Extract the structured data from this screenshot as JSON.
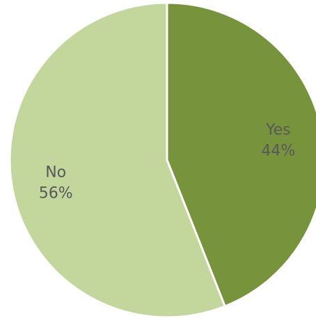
{
  "chart_data": {
    "type": "pie",
    "title": "",
    "slices": [
      {
        "label": "Yes",
        "value": 44,
        "value_text": "44%",
        "color": "#77933c"
      },
      {
        "label": "No",
        "value": 56,
        "value_text": "56%",
        "color": "#c3d69b"
      }
    ],
    "separator_color": "#ffffff",
    "label_color": "#595959",
    "legend": "none"
  }
}
